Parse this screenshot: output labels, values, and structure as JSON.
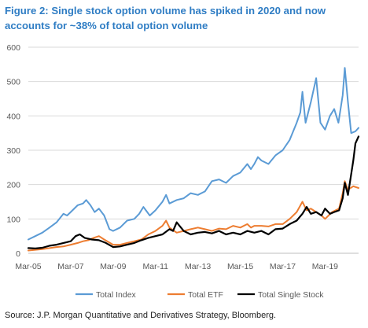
{
  "figure": {
    "title_line1": "Figure 2: Single stock option volume has spiked in 2020 and now",
    "title_line2": "accounts for ~38% of total option volume",
    "source": "Source: J.P. Morgan Quantitative and Derivatives Strategy, Bloomberg."
  },
  "colors": {
    "title": "#2f7dc4",
    "total_index": "#5b9bd5",
    "total_etf": "#ed7d31",
    "total_single_stock": "#000000",
    "grid": "#d9d9d9"
  },
  "chart_data": {
    "type": "line",
    "title": "",
    "xlabel": "",
    "ylabel": "",
    "ylim": [
      0,
      600
    ],
    "yticks": [
      0,
      100,
      200,
      300,
      400,
      500,
      600
    ],
    "xlim": [
      2005.17,
      2020.75
    ],
    "xtick_labels": [
      "Mar-05",
      "Mar-07",
      "Mar-09",
      "Mar-11",
      "Mar-13",
      "Mar-15",
      "Mar-17",
      "Mar-19"
    ],
    "xtick_values": [
      2005.17,
      2007.17,
      2009.17,
      2011.17,
      2013.17,
      2015.17,
      2017.17,
      2019.17
    ],
    "grid": "horizontal",
    "legend_position": "bottom",
    "series": [
      {
        "name": "Total Index",
        "x": [
          2005.17,
          2005.5,
          2005.83,
          2006.17,
          2006.5,
          2006.83,
          2007.0,
          2007.17,
          2007.5,
          2007.75,
          2007.9,
          2008.1,
          2008.3,
          2008.5,
          2008.75,
          2009.0,
          2009.17,
          2009.5,
          2009.83,
          2010.17,
          2010.4,
          2010.6,
          2010.9,
          2011.17,
          2011.5,
          2011.67,
          2011.83,
          2012.17,
          2012.5,
          2012.83,
          2013.17,
          2013.5,
          2013.83,
          2014.17,
          2014.5,
          2014.83,
          2015.17,
          2015.5,
          2015.67,
          2015.83,
          2016.0,
          2016.17,
          2016.5,
          2016.83,
          2017.17,
          2017.5,
          2017.83,
          2018.0,
          2018.1,
          2018.25,
          2018.5,
          2018.75,
          2018.95,
          2019.17,
          2019.4,
          2019.6,
          2019.8,
          2020.0,
          2020.1,
          2020.25,
          2020.4,
          2020.6,
          2020.75
        ],
        "y": [
          40,
          50,
          60,
          75,
          90,
          115,
          110,
          120,
          140,
          145,
          155,
          140,
          120,
          130,
          110,
          70,
          65,
          75,
          95,
          100,
          115,
          135,
          110,
          125,
          150,
          170,
          145,
          155,
          160,
          175,
          170,
          180,
          210,
          215,
          205,
          225,
          235,
          260,
          245,
          260,
          280,
          270,
          260,
          285,
          300,
          330,
          380,
          410,
          470,
          380,
          440,
          510,
          380,
          360,
          400,
          420,
          380,
          460,
          540,
          440,
          350,
          355,
          365
        ]
      },
      {
        "name": "Total ETF",
        "x": [
          2005.17,
          2005.5,
          2005.83,
          2006.17,
          2006.5,
          2006.83,
          2007.17,
          2007.5,
          2007.75,
          2008.0,
          2008.25,
          2008.5,
          2008.75,
          2009.17,
          2009.5,
          2009.83,
          2010.17,
          2010.5,
          2010.83,
          2011.17,
          2011.5,
          2011.67,
          2011.83,
          2012.17,
          2012.5,
          2012.83,
          2013.17,
          2013.5,
          2013.83,
          2014.17,
          2014.5,
          2014.83,
          2015.17,
          2015.5,
          2015.67,
          2015.83,
          2016.17,
          2016.5,
          2016.83,
          2017.17,
          2017.5,
          2017.83,
          2018.1,
          2018.3,
          2018.5,
          2018.75,
          2019.0,
          2019.17,
          2019.5,
          2019.83,
          2020.0,
          2020.1,
          2020.25,
          2020.5,
          2020.75
        ],
        "y": [
          8,
          10,
          12,
          15,
          18,
          20,
          25,
          30,
          35,
          38,
          45,
          50,
          40,
          25,
          25,
          30,
          35,
          40,
          55,
          65,
          80,
          95,
          75,
          60,
          65,
          70,
          75,
          70,
          65,
          72,
          70,
          80,
          75,
          85,
          75,
          80,
          80,
          78,
          85,
          85,
          100,
          120,
          150,
          125,
          130,
          120,
          110,
          100,
          120,
          130,
          175,
          210,
          185,
          195,
          190
        ]
      },
      {
        "name": "Total Single Stock",
        "x": [
          2005.17,
          2005.5,
          2005.83,
          2006.17,
          2006.5,
          2006.83,
          2007.17,
          2007.4,
          2007.6,
          2007.83,
          2008.17,
          2008.5,
          2008.83,
          2009.17,
          2009.5,
          2009.83,
          2010.17,
          2010.5,
          2010.83,
          2011.17,
          2011.5,
          2011.83,
          2012.0,
          2012.17,
          2012.5,
          2012.83,
          2013.17,
          2013.5,
          2013.83,
          2014.17,
          2014.5,
          2014.83,
          2015.17,
          2015.5,
          2015.83,
          2016.17,
          2016.5,
          2016.83,
          2017.17,
          2017.5,
          2017.83,
          2018.1,
          2018.3,
          2018.5,
          2018.75,
          2019.0,
          2019.17,
          2019.4,
          2019.6,
          2019.83,
          2020.0,
          2020.1,
          2020.25,
          2020.4,
          2020.5,
          2020.6,
          2020.75
        ],
        "y": [
          15,
          14,
          16,
          22,
          25,
          30,
          35,
          50,
          55,
          45,
          40,
          38,
          30,
          18,
          20,
          25,
          30,
          38,
          45,
          50,
          55,
          70,
          65,
          90,
          65,
          55,
          60,
          62,
          58,
          65,
          55,
          60,
          55,
          65,
          60,
          65,
          55,
          70,
          72,
          85,
          95,
          115,
          135,
          115,
          120,
          110,
          130,
          115,
          120,
          125,
          160,
          205,
          170,
          230,
          270,
          320,
          340
        ]
      }
    ]
  }
}
